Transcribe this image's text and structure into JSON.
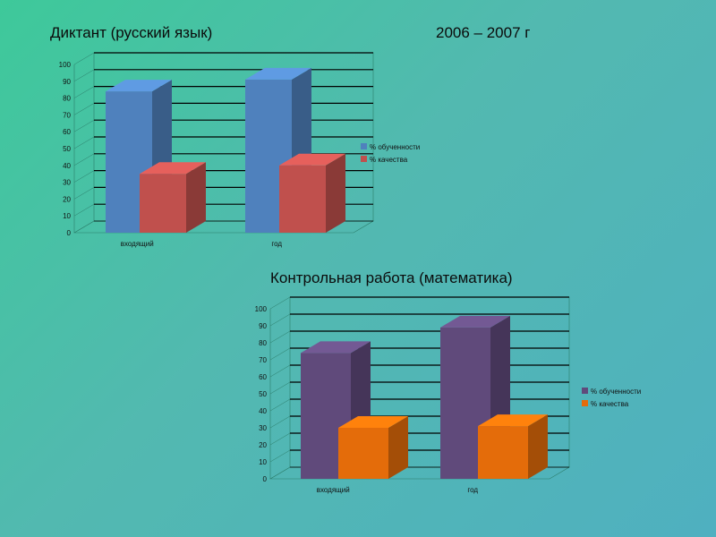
{
  "slide": {
    "title_left": "Диктант (русский язык)",
    "title_right": "2006 – 2007 г",
    "title_math": "Контрольная работа (математика)"
  },
  "chart_data": [
    {
      "type": "bar",
      "name": "Диктант (русский язык)",
      "categories": [
        "входящий",
        "год"
      ],
      "series": [
        {
          "name": "% обученности",
          "values": [
            84,
            91
          ],
          "color": "#4f81bd"
        },
        {
          "name": "% качества",
          "values": [
            35,
            40
          ],
          "color": "#c0504d"
        }
      ],
      "ylim": [
        0,
        100
      ],
      "yticks": [
        0,
        10,
        20,
        30,
        40,
        50,
        60,
        70,
        80,
        90,
        100
      ],
      "grid": true,
      "legend": "right",
      "three_d": true
    },
    {
      "type": "bar",
      "name": "Контрольная работа (математика)",
      "categories": [
        "входящий",
        "год"
      ],
      "series": [
        {
          "name": "% обученности",
          "values": [
            74,
            89
          ],
          "color": "#604a7b"
        },
        {
          "name": "% качества",
          "values": [
            30,
            31
          ],
          "color": "#e46c0a"
        }
      ],
      "ylim": [
        0,
        100
      ],
      "yticks": [
        0,
        10,
        20,
        30,
        40,
        50,
        60,
        70,
        80,
        90,
        100
      ],
      "grid": true,
      "legend": "right",
      "three_d": true
    }
  ]
}
